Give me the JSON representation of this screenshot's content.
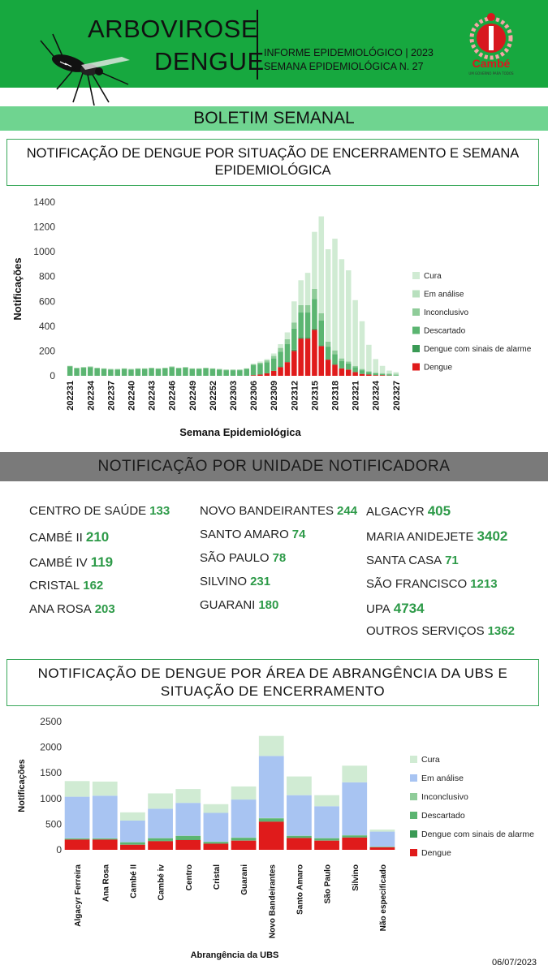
{
  "header": {
    "title_line1": "ARBOVIROSE",
    "title_line2": "DENGUE",
    "info_line1": "INFORME EPIDEMIOLÓGICO | 2023",
    "info_line2": "SEMANA EPIDEMIOLÓGICA  N. 27",
    "logo_text": "Cambé",
    "logo_sub": "UM GOVERNO PARA TODOS"
  },
  "banner": "BOLETIM SEMANAL",
  "chart1_title": "NOTIFICAÇÃO DE DENGUE POR SITUAÇÃO DE ENCERRAMENTO E SEMANA EPIDEMIOLÓGICA",
  "units_title": "NOTIFICAÇÃO POR UNIDADE NOTIFICADORA",
  "units": [
    {
      "name": "CENTRO  DE SAÚDE",
      "value": "133"
    },
    {
      "name": "CAMBÉ II",
      "value": "210"
    },
    {
      "name": "CAMBÉ IV",
      "value": "119"
    },
    {
      "name": "CRISTAL",
      "value": "162"
    },
    {
      "name": "ANA ROSA",
      "value": "203"
    },
    {
      "name": "NOVO BANDEIRANTES",
      "value": "244"
    },
    {
      "name": "SANTO AMARO",
      "value": "74"
    },
    {
      "name": "SÃO PAULO",
      "value": "78"
    },
    {
      "name": "SILVINO",
      "value": "231"
    },
    {
      "name": "GUARANI",
      "value": "180"
    },
    {
      "name": "ALGACYR",
      "value": "405"
    },
    {
      "name": "MARIA ANIDEJETE",
      "value": "3402"
    },
    {
      "name": "SANTA CASA",
      "value": "71"
    },
    {
      "name": "SÃO FRANCISCO",
      "value": "1213"
    },
    {
      "name": "UPA",
      "value": "4734"
    },
    {
      "name": "OUTROS SERVIÇOS",
      "value": "1362"
    }
  ],
  "chart2_title": "NOTIFICAÇÃO DE DENGUE POR ÁREA DE ABRANGÊNCIA DA UBS E SITUAÇÃO DE ENCERRAMENTO",
  "date": "06/07/2023",
  "colors": {
    "header_green": "#17a83f",
    "banner_green": "#6fd490",
    "dengue": "#e01b1b",
    "alarme": "#3a9a55",
    "descartado": "#5bb571",
    "inconclusivo": "#8fcc99",
    "em_analise_1": "#b8e0be",
    "em_analise_2": "#a8c4f2",
    "cura": "#d0ebd3"
  },
  "chart_data": [
    {
      "type": "bar",
      "stacked": true,
      "xlabel": "Semana Epidemiológica",
      "ylabel": "Notificações",
      "ylim": [
        0,
        1400
      ],
      "yticks": [
        0,
        200,
        400,
        600,
        800,
        1000,
        1200,
        1400
      ],
      "legend": [
        "Cura",
        "Em análise",
        "Inconclusivo",
        "Descartado",
        "Dengue com sinais de alarme",
        "Dengue"
      ],
      "legend_position": "right",
      "categories": [
        "202231",
        "202232",
        "202233",
        "202234",
        "202235",
        "202236",
        "202237",
        "202238",
        "202239",
        "202240",
        "202241",
        "202242",
        "202243",
        "202244",
        "202245",
        "202246",
        "202247",
        "202248",
        "202249",
        "202250",
        "202251",
        "202252",
        "202301",
        "202302",
        "202303",
        "202304",
        "202305",
        "202306",
        "202307",
        "202308",
        "202309",
        "202310",
        "202311",
        "202312",
        "202313",
        "202314",
        "202315",
        "202316",
        "202317",
        "202318",
        "202319",
        "202320",
        "202321",
        "202322",
        "202323",
        "202324",
        "202325",
        "202326",
        "202327"
      ],
      "tick_labels": [
        "202231",
        "202234",
        "202237",
        "202240",
        "202243",
        "202246",
        "202249",
        "202252",
        "202303",
        "202306",
        "202309",
        "202312",
        "202315",
        "202318",
        "202321",
        "202324",
        "202327"
      ],
      "series": [
        {
          "name": "Dengue",
          "values": [
            0,
            0,
            0,
            0,
            0,
            0,
            0,
            0,
            0,
            0,
            0,
            0,
            0,
            0,
            0,
            0,
            0,
            0,
            0,
            0,
            0,
            0,
            0,
            0,
            0,
            0,
            0,
            5,
            10,
            20,
            40,
            70,
            110,
            200,
            300,
            300,
            370,
            240,
            130,
            90,
            60,
            50,
            30,
            15,
            10,
            5,
            5,
            2,
            0
          ]
        },
        {
          "name": "Dengue com sinais de alarme",
          "values": [
            0,
            0,
            0,
            0,
            0,
            0,
            0,
            0,
            0,
            0,
            0,
            0,
            0,
            0,
            0,
            0,
            0,
            0,
            0,
            0,
            0,
            0,
            0,
            0,
            0,
            0,
            0,
            0,
            0,
            0,
            0,
            5,
            5,
            10,
            10,
            10,
            10,
            5,
            5,
            5,
            0,
            0,
            0,
            0,
            0,
            0,
            0,
            0,
            0
          ]
        },
        {
          "name": "Descartado",
          "values": [
            75,
            60,
            65,
            70,
            60,
            55,
            50,
            50,
            55,
            50,
            55,
            55,
            60,
            55,
            60,
            70,
            60,
            65,
            55,
            55,
            60,
            55,
            50,
            45,
            45,
            45,
            55,
            80,
            85,
            90,
            100,
            120,
            140,
            170,
            200,
            200,
            240,
            200,
            100,
            80,
            60,
            50,
            40,
            30,
            20,
            15,
            10,
            10,
            5
          ]
        },
        {
          "name": "Inconclusivo",
          "values": [
            5,
            5,
            5,
            5,
            5,
            5,
            5,
            5,
            5,
            5,
            5,
            5,
            5,
            5,
            5,
            5,
            5,
            5,
            5,
            5,
            5,
            5,
            5,
            5,
            5,
            5,
            5,
            10,
            10,
            15,
            20,
            30,
            40,
            50,
            60,
            60,
            80,
            60,
            40,
            30,
            20,
            15,
            10,
            10,
            5,
            5,
            5,
            5,
            5
          ]
        },
        {
          "name": "Em análise",
          "values": [
            0,
            0,
            0,
            0,
            0,
            0,
            0,
            0,
            0,
            0,
            0,
            0,
            0,
            0,
            0,
            0,
            0,
            0,
            0,
            0,
            0,
            0,
            0,
            0,
            0,
            0,
            0,
            0,
            0,
            0,
            0,
            0,
            0,
            0,
            0,
            0,
            0,
            0,
            0,
            0,
            0,
            0,
            0,
            0,
            5,
            5,
            5,
            5,
            10
          ]
        },
        {
          "name": "Cura",
          "values": [
            0,
            0,
            0,
            0,
            0,
            0,
            0,
            0,
            0,
            0,
            0,
            0,
            0,
            0,
            0,
            0,
            0,
            0,
            0,
            0,
            0,
            0,
            0,
            0,
            0,
            0,
            0,
            0,
            10,
            10,
            20,
            30,
            55,
            170,
            200,
            260,
            460,
            780,
            745,
            900,
            800,
            735,
            530,
            385,
            210,
            105,
            55,
            20,
            10
          ]
        }
      ]
    },
    {
      "type": "bar",
      "stacked": true,
      "xlabel": "Abrangência da UBS",
      "ylabel": "Notificações",
      "ylim": [
        0,
        2500
      ],
      "yticks": [
        0,
        500,
        1000,
        1500,
        2000,
        2500
      ],
      "legend": [
        "Cura",
        "Em análise",
        "Inconclusivo",
        "Descartado",
        "Dengue com sinais de alarme",
        "Dengue"
      ],
      "legend_position": "right",
      "categories": [
        "Algacyr Ferreira",
        "Ana Rosa",
        "Cambé II",
        "Cambé iv",
        "Centro",
        "Cristal",
        "Guarani",
        "Novo Bandeirantes",
        "Santo Amaro",
        "São Paulo",
        "Silvino",
        "Não especificado"
      ],
      "series": [
        {
          "name": "Dengue",
          "values": [
            200,
            200,
            100,
            170,
            190,
            120,
            180,
            550,
            230,
            180,
            240,
            50
          ]
        },
        {
          "name": "Dengue com sinais de alarme",
          "values": [
            5,
            5,
            5,
            5,
            10,
            5,
            5,
            15,
            5,
            5,
            10,
            0
          ]
        },
        {
          "name": "Descartado",
          "values": [
            15,
            15,
            40,
            50,
            70,
            30,
            50,
            45,
            35,
            40,
            30,
            10
          ]
        },
        {
          "name": "Inconclusivo",
          "values": [
            5,
            5,
            5,
            5,
            5,
            5,
            5,
            10,
            5,
            5,
            5,
            5
          ]
        },
        {
          "name": "Em análise",
          "values": [
            810,
            830,
            420,
            570,
            640,
            560,
            740,
            1210,
            790,
            620,
            1030,
            290
          ]
        },
        {
          "name": "Cura",
          "values": [
            305,
            275,
            160,
            300,
            270,
            170,
            255,
            390,
            365,
            215,
            325,
            40
          ]
        }
      ]
    }
  ]
}
